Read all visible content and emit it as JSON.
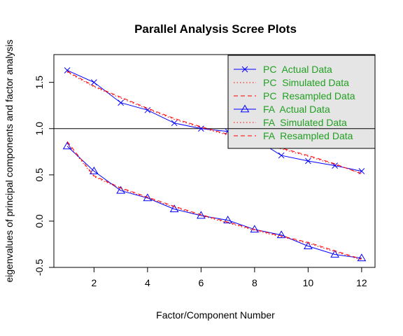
{
  "chart_data": {
    "type": "line",
    "title": "Parallel Analysis Scree Plots",
    "xlabel": "Factor/Component Number",
    "ylabel": "eigenvalues of principal components and factor analysis",
    "xlim": [
      0.5,
      12.5
    ],
    "ylim": [
      -0.5,
      1.8
    ],
    "x_ticks": [
      2,
      4,
      6,
      8,
      10,
      12
    ],
    "y_ticks": [
      -0.5,
      0.0,
      0.5,
      1.0,
      1.5
    ],
    "y_tick_labels": [
      "-0.5",
      "0.0",
      "0.5",
      "1.0",
      "1.5"
    ],
    "hline": 1.0,
    "grid": false,
    "legend_position": "top-right",
    "x": [
      1,
      2,
      3,
      4,
      5,
      6,
      7,
      8,
      9,
      10,
      11,
      12
    ],
    "series": [
      {
        "name": "PC  Actual Data",
        "color": "#0000ff",
        "line": "solid",
        "marker": "x",
        "values": [
          1.63,
          1.5,
          1.28,
          1.2,
          1.06,
          1.0,
          0.97,
          0.89,
          0.71,
          0.65,
          0.6,
          0.54
        ]
      },
      {
        "name": "PC  Simulated Data",
        "color": "#ff0000",
        "line": "dotted",
        "marker": "none",
        "values": [
          1.61,
          1.45,
          1.33,
          1.21,
          1.1,
          1.01,
          0.93,
          0.85,
          0.78,
          0.7,
          0.61,
          0.52
        ]
      },
      {
        "name": "PC  Resampled Data",
        "color": "#ff0000",
        "line": "dashed",
        "marker": "none",
        "values": [
          1.62,
          1.46,
          1.34,
          1.22,
          1.11,
          1.02,
          0.94,
          0.86,
          0.79,
          0.71,
          0.62,
          0.51
        ]
      },
      {
        "name": "FA  Actual Data",
        "color": "#0000ff",
        "line": "solid",
        "marker": "triangle",
        "values": [
          0.81,
          0.54,
          0.33,
          0.25,
          0.13,
          0.06,
          0.01,
          -0.09,
          -0.15,
          -0.27,
          -0.36,
          -0.4
        ]
      },
      {
        "name": "FA  Simulated Data",
        "color": "#ff0000",
        "line": "dotted",
        "marker": "none",
        "values": [
          0.84,
          0.48,
          0.35,
          0.25,
          0.15,
          0.06,
          -0.02,
          -0.1,
          -0.17,
          -0.24,
          -0.33,
          -0.42
        ]
      },
      {
        "name": "FA  Resampled Data",
        "color": "#ff0000",
        "line": "dashed",
        "marker": "none",
        "values": [
          0.86,
          0.49,
          0.36,
          0.26,
          0.16,
          0.07,
          -0.01,
          -0.09,
          -0.16,
          -0.23,
          -0.32,
          -0.41
        ]
      }
    ],
    "legend_text_color": "#22a022",
    "legend_bg": "#e5e5e5"
  }
}
